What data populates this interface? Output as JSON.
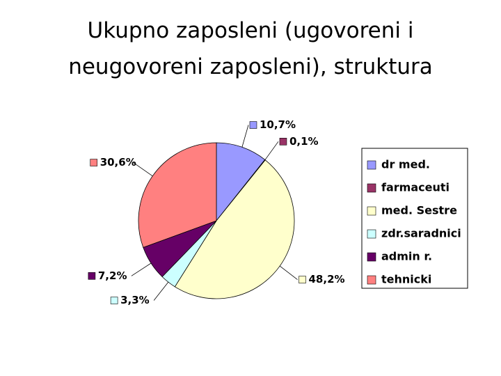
{
  "chart_data": {
    "type": "pie",
    "title": "Ukupno zaposleni (ugovoreni i neugovoreni zaposleni), struktura",
    "categories": [
      "dr med.",
      "farmaceuti",
      "med. Sestre",
      "zdr.saradnici",
      "admin r.",
      "tehnicki"
    ],
    "values": [
      10.7,
      0.1,
      48.2,
      3.3,
      7.2,
      30.6
    ],
    "value_labels": [
      "10,7%",
      "0,1%",
      "48,2%",
      "3,3%",
      "7,2%",
      "30,6%"
    ],
    "colors": [
      "#9999ff",
      "#993366",
      "#ffffcc",
      "#ccffff",
      "#660066",
      "#ff8080"
    ],
    "legend": "right"
  }
}
